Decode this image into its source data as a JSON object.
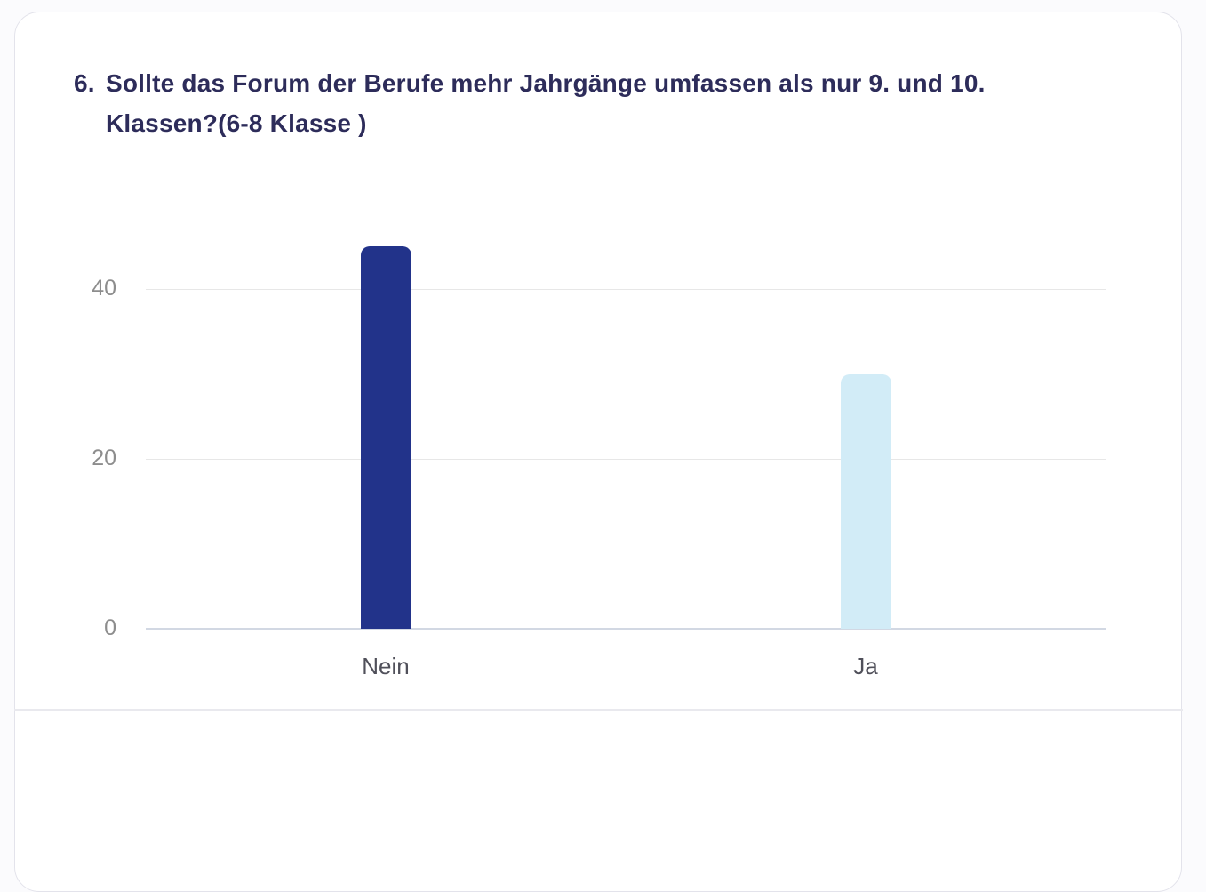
{
  "page": {
    "background_color": "#fbfbfd",
    "card_background": "#ffffff",
    "card_border_color": "#e3e3eb"
  },
  "question": {
    "number": "6.",
    "title_line1": "Sollte das Forum der Berufe mehr Jahrgänge umfassen als nur 9. und 10.",
    "title_line2": "Klassen?(6-8 Klasse )",
    "title_color": "#2d2c5a"
  },
  "chart_data": {
    "type": "bar",
    "categories": [
      "Nein",
      "Ja"
    ],
    "values": [
      45,
      30
    ],
    "bar_colors": [
      "#22338a",
      "#d2ecf7"
    ],
    "title": "",
    "xlabel": "",
    "ylabel": "",
    "y_ticks": [
      0,
      20,
      40
    ],
    "ylim": [
      0,
      47
    ],
    "grid": true,
    "legend": false,
    "gridline_color": "#e7e7e7",
    "baseline_color": "#d2d8e3",
    "y_tick_label_color": "#8d8d8d",
    "category_label_color": "#50505a"
  }
}
